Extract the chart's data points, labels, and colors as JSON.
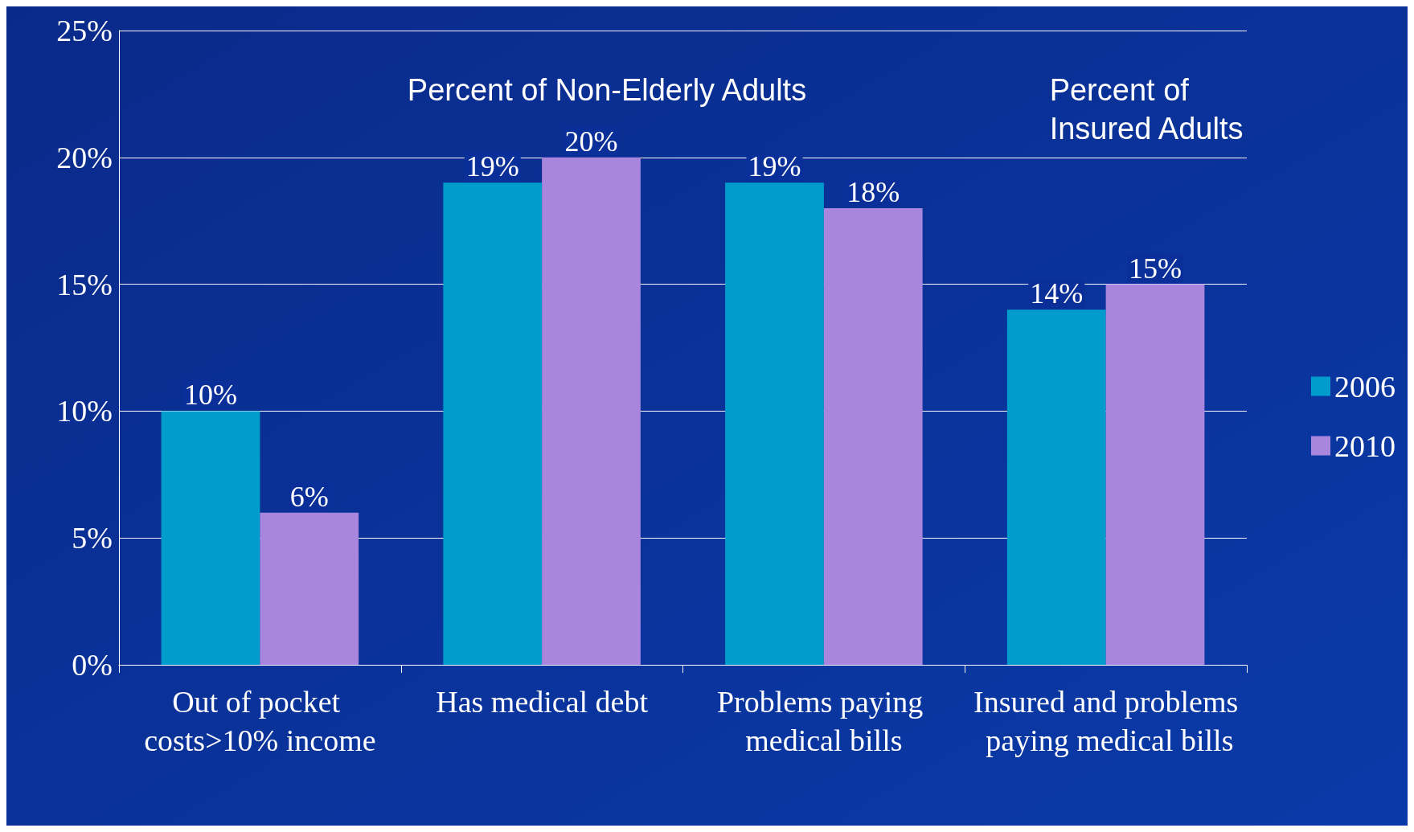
{
  "chart_data": {
    "type": "bar",
    "categories": [
      "Out of pocket costs>10% income",
      "Has medical debt",
      "Problems paying medical bills",
      "Insured and problems paying medical bills"
    ],
    "series": [
      {
        "name": "2006",
        "color": "#009ccc",
        "values": [
          10,
          19,
          19,
          14
        ],
        "value_labels": [
          "10%",
          "19%",
          "19%",
          "14%"
        ]
      },
      {
        "name": "2010",
        "color": "#a886de",
        "values": [
          6,
          20,
          18,
          15
        ],
        "value_labels": [
          "6%",
          "20%",
          "18%",
          "15%"
        ]
      }
    ],
    "ylim": [
      0,
      25
    ],
    "yticks": [
      {
        "value": 0,
        "label": "0%"
      },
      {
        "value": 5,
        "label": "5%"
      },
      {
        "value": 10,
        "label": "10%"
      },
      {
        "value": 15,
        "label": "15%"
      },
      {
        "value": 20,
        "label": "20%"
      },
      {
        "value": 25,
        "label": "25%"
      }
    ],
    "grid": "y",
    "legend": "right",
    "annotations": [
      "Percent of Non-Elderly Adults",
      "Percent of\nInsured Adults"
    ]
  }
}
